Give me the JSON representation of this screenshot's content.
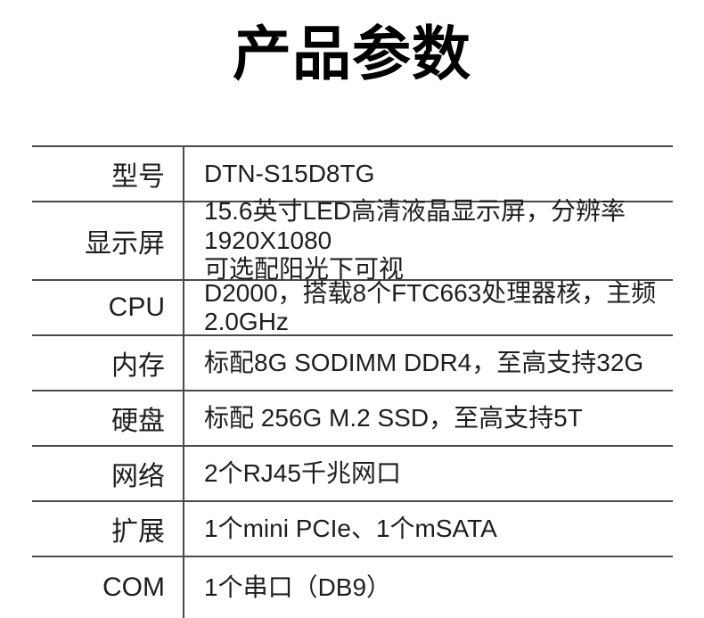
{
  "page": {
    "title": "产品参数"
  },
  "colors": {
    "background": "#ffffff",
    "title_text": "#000000",
    "body_text": "#1e1e1e",
    "table_rule": "#4a4a4a"
  },
  "spec_table": {
    "rows": [
      {
        "label": "型号",
        "value": "DTN-S15D8TG"
      },
      {
        "label": "显示屏",
        "value": "15.6英寸LED高清液晶显示屏，分辨率1920X1080\n可选配阳光下可视"
      },
      {
        "label": "CPU",
        "value": "D2000，搭载8个FTC663处理器核，主频2.0GHz"
      },
      {
        "label": "内存",
        "value": "标配8G SODIMM DDR4，至高支持32G"
      },
      {
        "label": "硬盘",
        "value": "标配 256G M.2 SSD，至高支持5T"
      },
      {
        "label": "网络",
        "value": "2个RJ45千兆网口"
      },
      {
        "label": "扩展",
        "value": "1个mini PCIe、1个mSATA"
      },
      {
        "label": "COM",
        "value": "1个串口（DB9）"
      }
    ]
  }
}
